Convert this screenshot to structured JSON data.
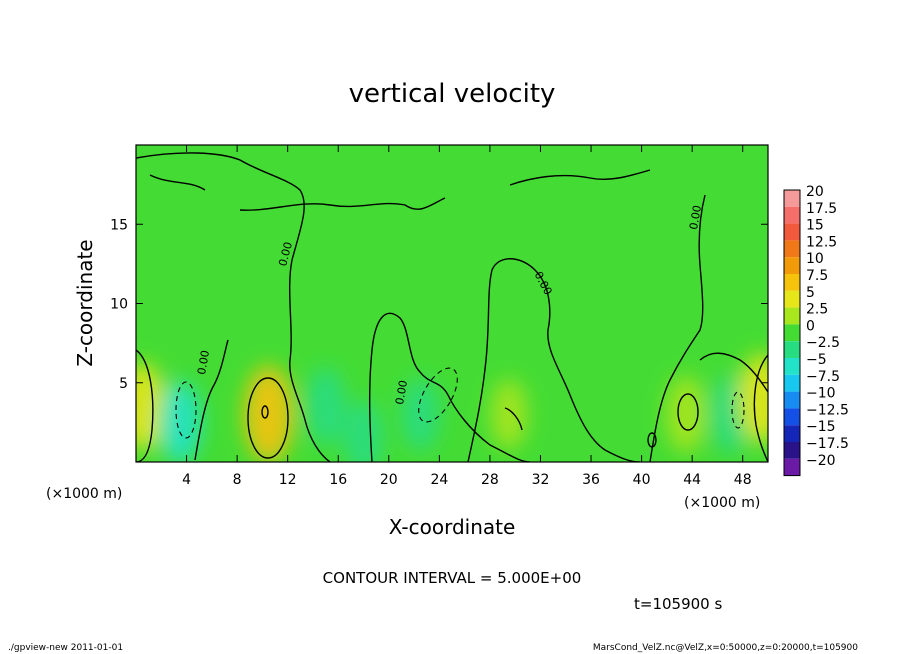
{
  "chart_data": {
    "type": "heatmap",
    "title": "vertical velocity",
    "xlabel": "X-coordinate",
    "ylabel": "Z-coordinate",
    "x_unit": "(×1000 m)",
    "y_unit": "(×1000 m)",
    "xlim": [
      0,
      50
    ],
    "ylim": [
      0,
      20
    ],
    "x_ticks": [
      4,
      8,
      12,
      16,
      20,
      24,
      28,
      32,
      36,
      40,
      44,
      48
    ],
    "y_ticks": [
      5,
      10,
      15
    ],
    "colorbar_levels": [
      "20",
      "17.5",
      "15",
      "12.5",
      "10",
      "7.5",
      "5",
      "2.5",
      "0",
      "-2.5",
      "-5",
      "-7.5",
      "-10",
      "-12.5",
      "-15",
      "-17.5",
      "-20"
    ],
    "colorbar_colors": [
      "#f49a9a",
      "#f56f6a",
      "#f15a3c",
      "#f07818",
      "#f19a0a",
      "#f5c30c",
      "#e6e61a",
      "#a8e61e",
      "#44dc34",
      "#28dc82",
      "#22e3c8",
      "#18c8ee",
      "#188cf0",
      "#1450e6",
      "#1426b8",
      "#2a1288",
      "#6a1aa4"
    ],
    "contour_interval": "CONTOUR INTERVAL = 5.000E+00",
    "contour_label": "0.00",
    "time_label": "t=105900 s",
    "features": [
      {
        "x": 0.5,
        "z": 3.5,
        "w": 5.5
      },
      {
        "x": 3.5,
        "z": 2.5,
        "w": -4.5
      },
      {
        "x": 10.5,
        "z": 3.0,
        "w": 7.5
      },
      {
        "x": 15.0,
        "z": 3.5,
        "w": -3.5
      },
      {
        "x": 18.0,
        "z": 1.5,
        "w": -3.0
      },
      {
        "x": 22.5,
        "z": 3.0,
        "w": -2.5
      },
      {
        "x": 29.5,
        "z": 3.0,
        "w": 2.0
      },
      {
        "x": 43.5,
        "z": 3.0,
        "w": 3.5
      },
      {
        "x": 47.0,
        "z": 3.0,
        "w": -3.5
      },
      {
        "x": 49.5,
        "z": 4.0,
        "w": 6.0
      }
    ]
  },
  "footer": {
    "left": "./gpview-new  2011-01-01",
    "right": "MarsCond_VelZ.nc@VelZ,x=0:50000,z=0:20000,t=105900"
  }
}
